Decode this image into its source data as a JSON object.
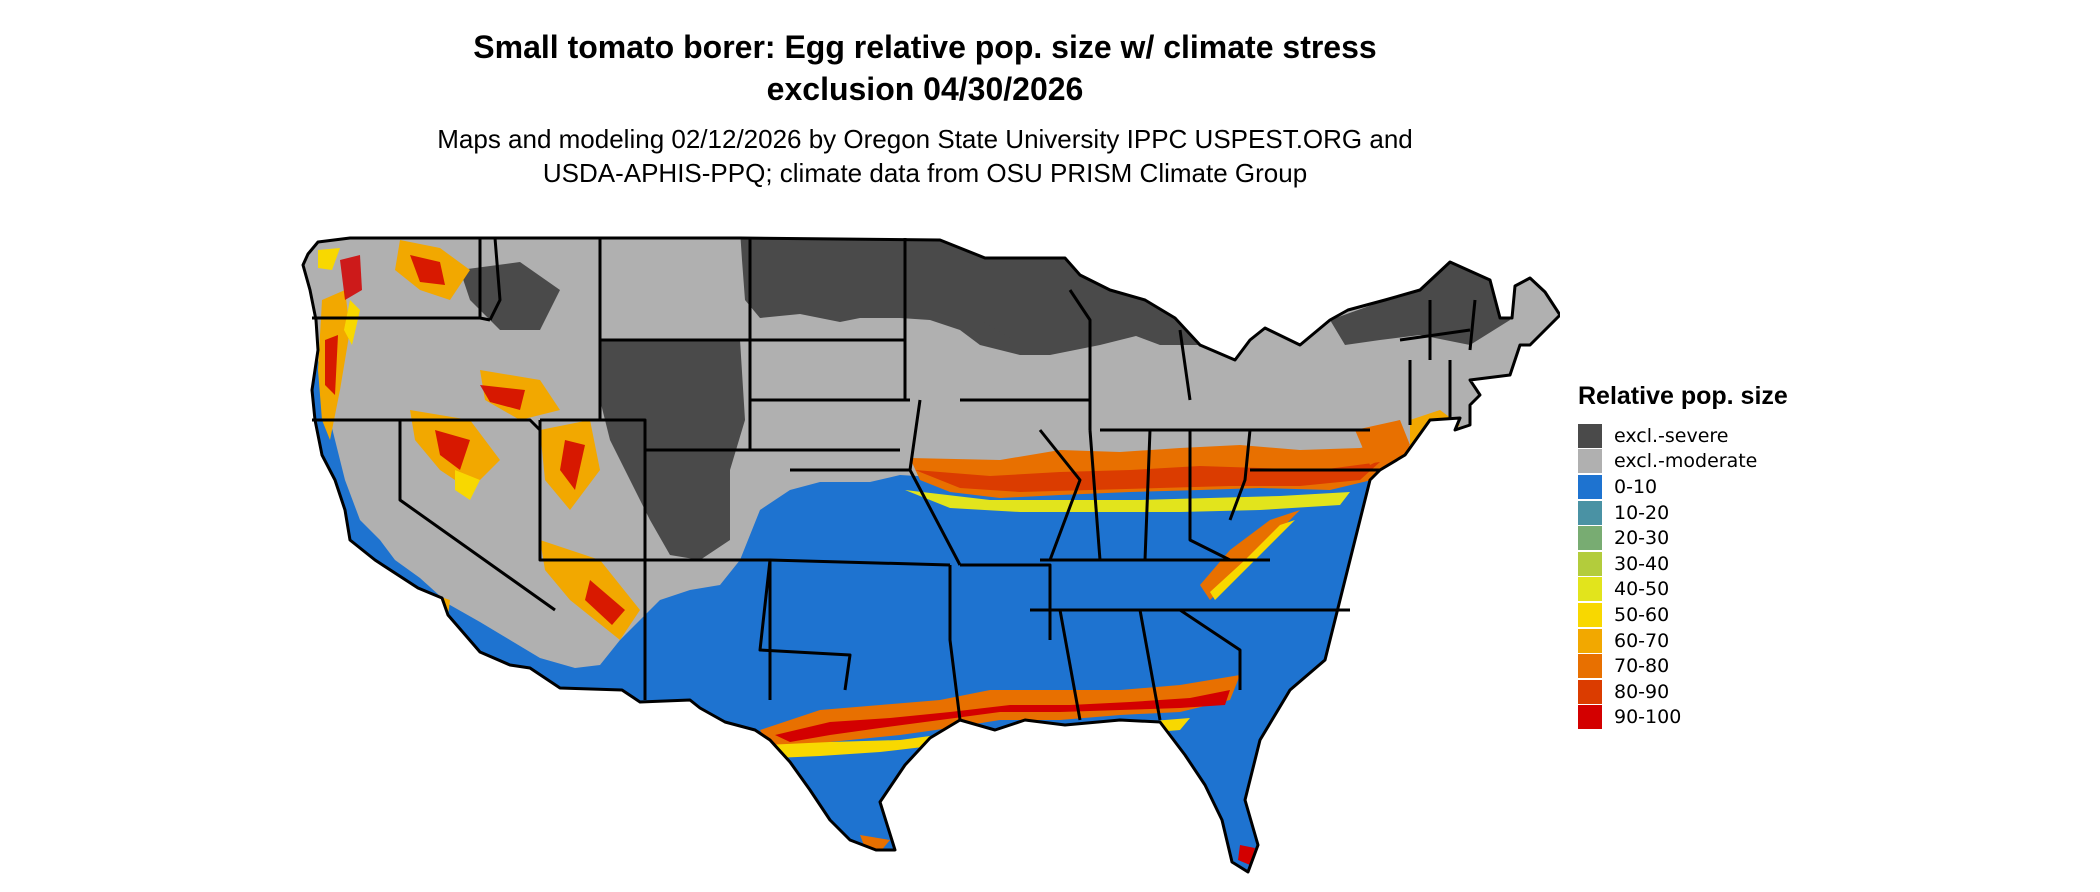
{
  "title_line1": "Small tomato borer: Egg relative pop. size w/ climate stress",
  "title_line2": "exclusion 04/30/2026",
  "subtitle_line1": "Maps and modeling 02/12/2026 by Oregon State University IPPC USPEST.ORG and",
  "subtitle_line2": "USDA-APHIS-PPQ; climate data from OSU PRISM Climate Group",
  "legend": {
    "title": "Relative pop. size",
    "items": [
      {
        "label": "excl.-severe",
        "color": "#4a4a4a"
      },
      {
        "label": "excl.-moderate",
        "color": "#b0b0b0"
      },
      {
        "label": "0-10",
        "color": "#1e73d0"
      },
      {
        "label": "10-20",
        "color": "#4a92a4"
      },
      {
        "label": "20-30",
        "color": "#78ac72"
      },
      {
        "label": "30-40",
        "color": "#b3cc3c"
      },
      {
        "label": "40-50",
        "color": "#e2e41c"
      },
      {
        "label": "50-60",
        "color": "#f8d800"
      },
      {
        "label": "60-70",
        "color": "#f2a800"
      },
      {
        "label": "70-80",
        "color": "#e87000"
      },
      {
        "label": "80-90",
        "color": "#db3c00"
      },
      {
        "label": "90-100",
        "color": "#d30000"
      }
    ]
  }
}
